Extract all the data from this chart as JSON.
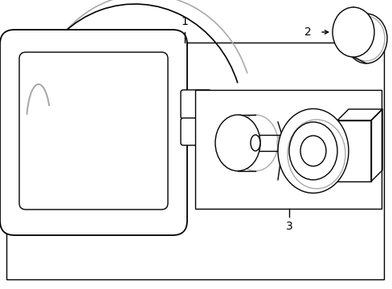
{
  "background_color": "#ffffff",
  "line_color": "#000000",
  "label_1": "1",
  "label_2": "2",
  "label_3": "3",
  "label_fontsize": 10,
  "fig_width": 4.89,
  "fig_height": 3.6,
  "dpi": 100
}
